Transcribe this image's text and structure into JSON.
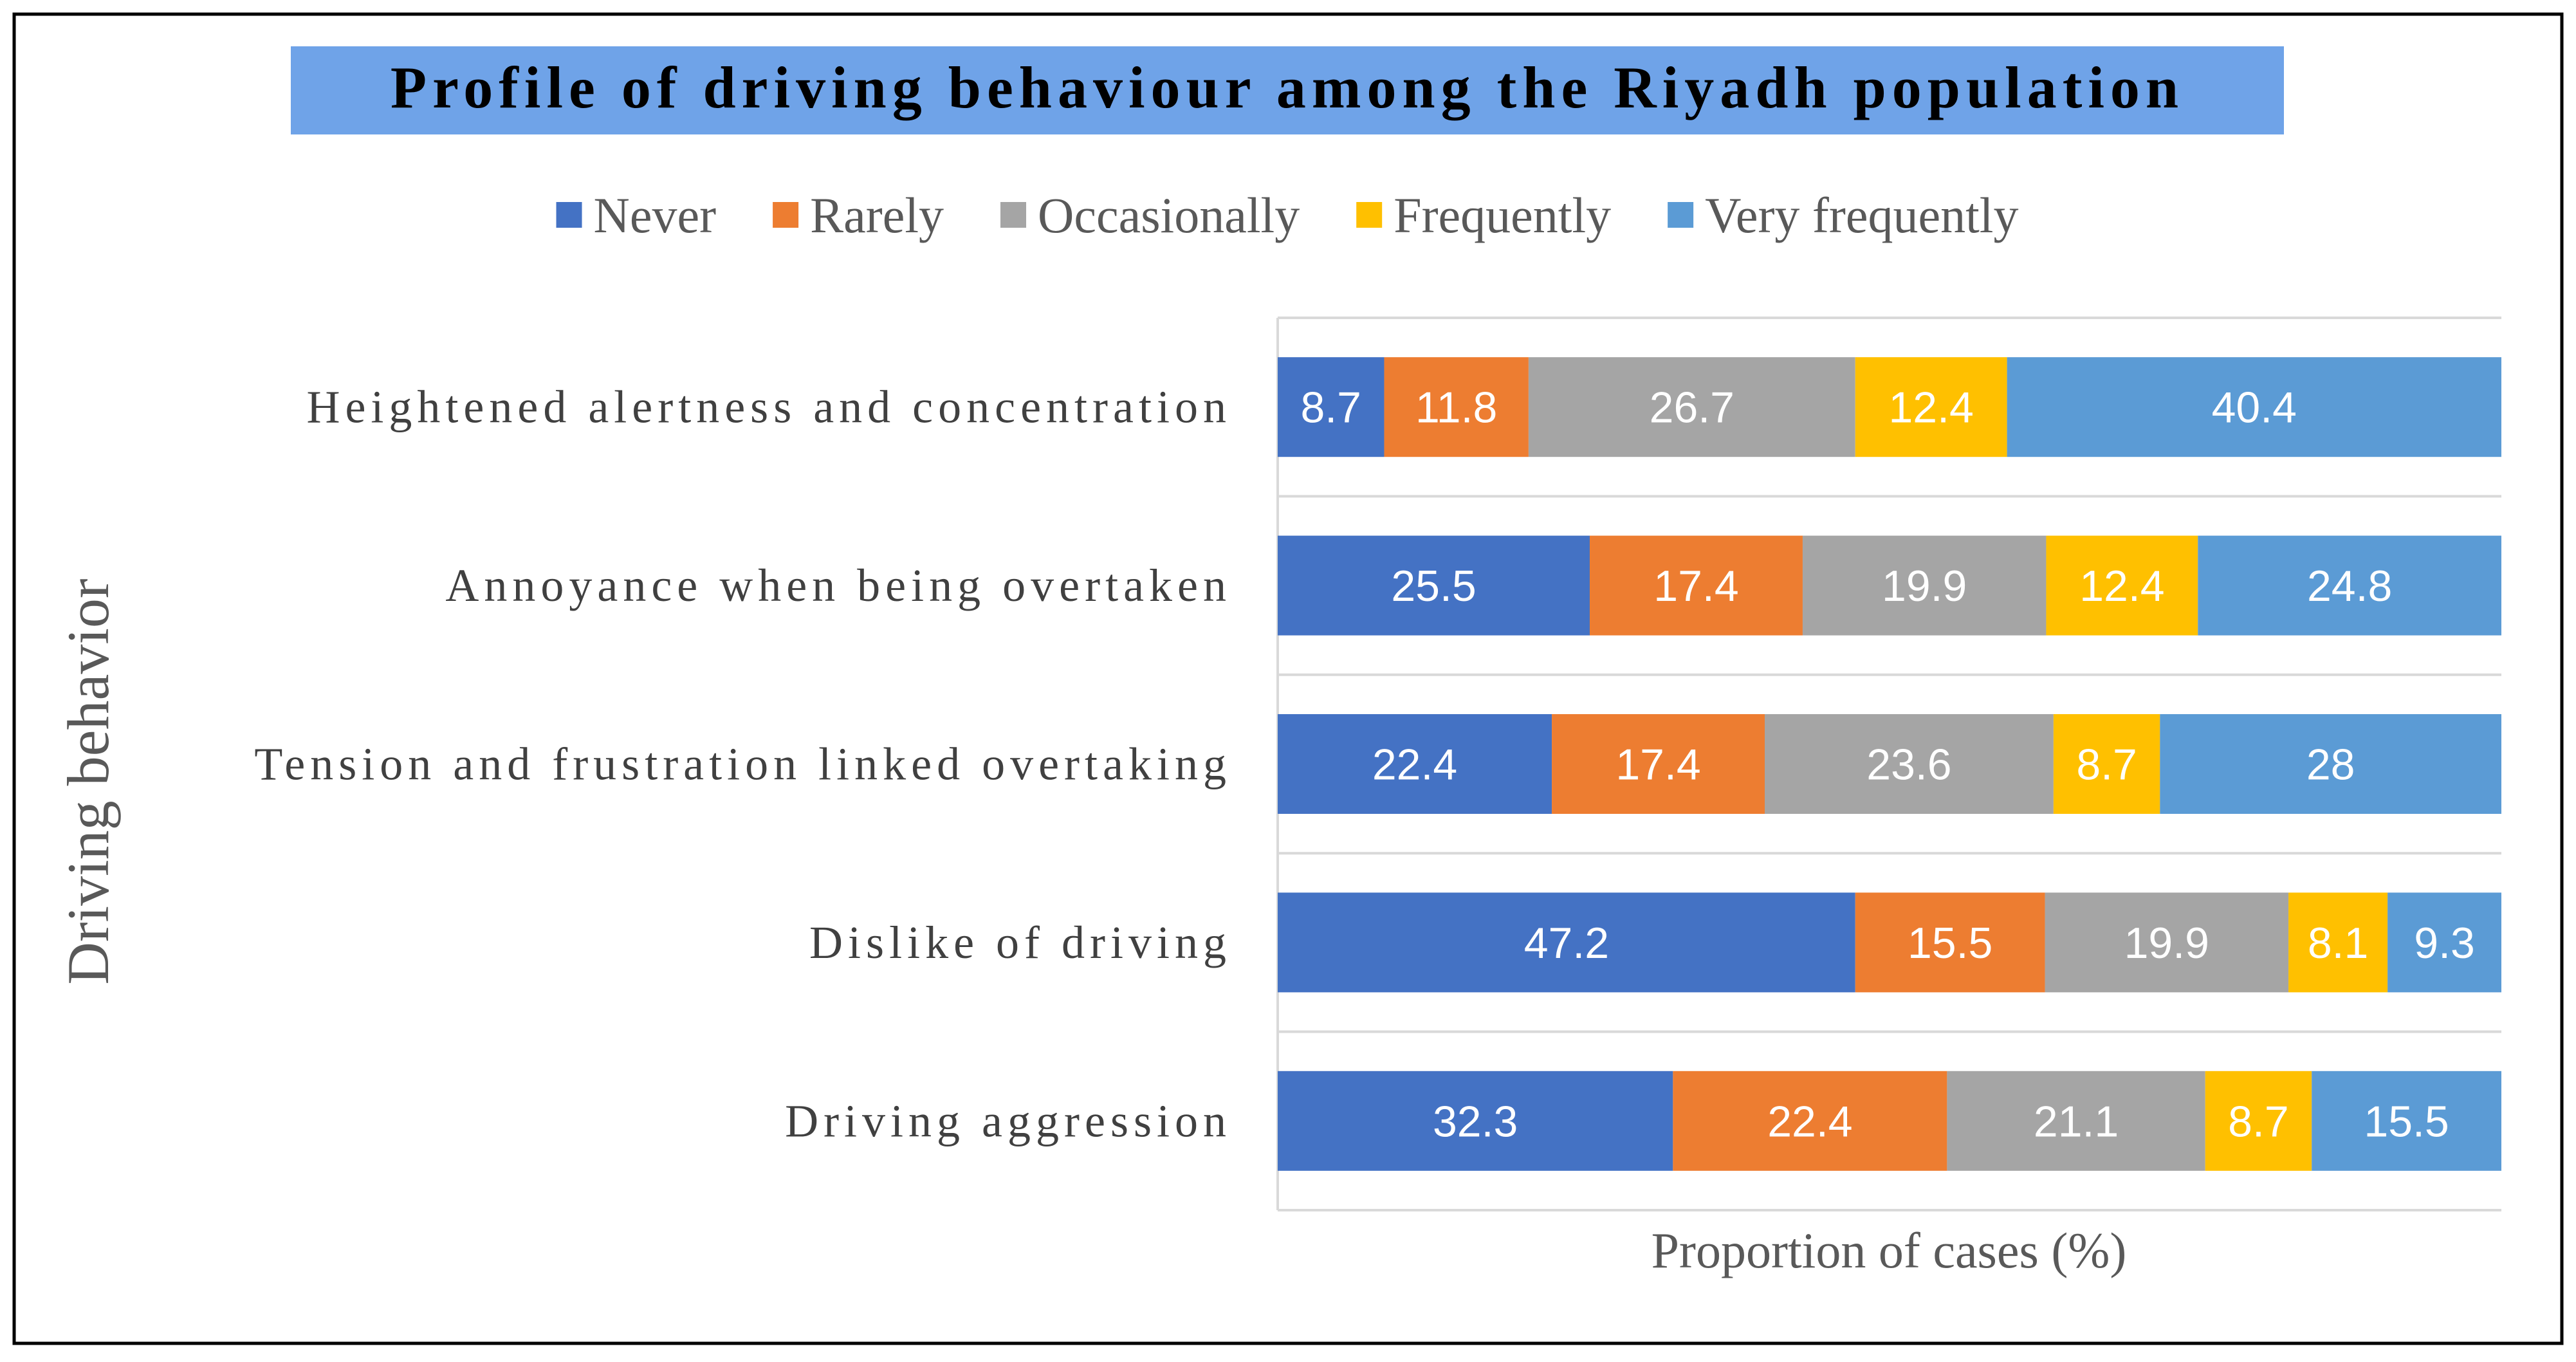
{
  "chart_data": {
    "type": "bar",
    "orientation": "horizontal",
    "stacked": true,
    "title": "Profile of driving behaviour among the Riyadh population",
    "xlabel": "Proportion of cases (%)",
    "ylabel": "Driving behavior",
    "xlim": [
      0,
      100
    ],
    "legend_position": "top",
    "grid": "horizontal separators between categories",
    "categories": [
      "Heightened alertness and concentration",
      "Annoyance when being overtaken",
      "Tension and frustration linked overtaking",
      "Dislike of driving",
      "Driving aggression"
    ],
    "series": [
      {
        "name": "Never",
        "color": "#4472C4",
        "values": [
          8.7,
          25.5,
          22.4,
          47.2,
          32.3
        ]
      },
      {
        "name": "Rarely",
        "color": "#ED7D31",
        "values": [
          11.8,
          17.4,
          17.4,
          15.5,
          22.4
        ]
      },
      {
        "name": "Occasionally",
        "color": "#A5A5A5",
        "values": [
          26.7,
          19.9,
          23.6,
          19.9,
          21.1
        ]
      },
      {
        "name": "Frequently",
        "color": "#FFC000",
        "values": [
          12.4,
          12.4,
          8.7,
          8.1,
          8.7
        ]
      },
      {
        "name": "Very frequently",
        "color": "#5B9BD5",
        "values": [
          40.4,
          24.8,
          28,
          9.3,
          15.5
        ]
      }
    ],
    "value_labels": [
      [
        "8.7",
        "11.8",
        "26.7",
        "12.4",
        "40.4"
      ],
      [
        "25.5",
        "17.4",
        "19.9",
        "12.4",
        "24.8"
      ],
      [
        "22.4",
        "17.4",
        "23.6",
        "8.7",
        "28"
      ],
      [
        "47.2",
        "15.5",
        "19.9",
        "8.1",
        "9.3"
      ],
      [
        "32.3",
        "22.4",
        "21.1",
        "8.7",
        "15.5"
      ]
    ],
    "title_background": "#6FA3E8",
    "label_color": "#FFFFFF",
    "text_color": "#595959",
    "frame_color": "#000000",
    "grid_color": "#D9D9D9"
  }
}
